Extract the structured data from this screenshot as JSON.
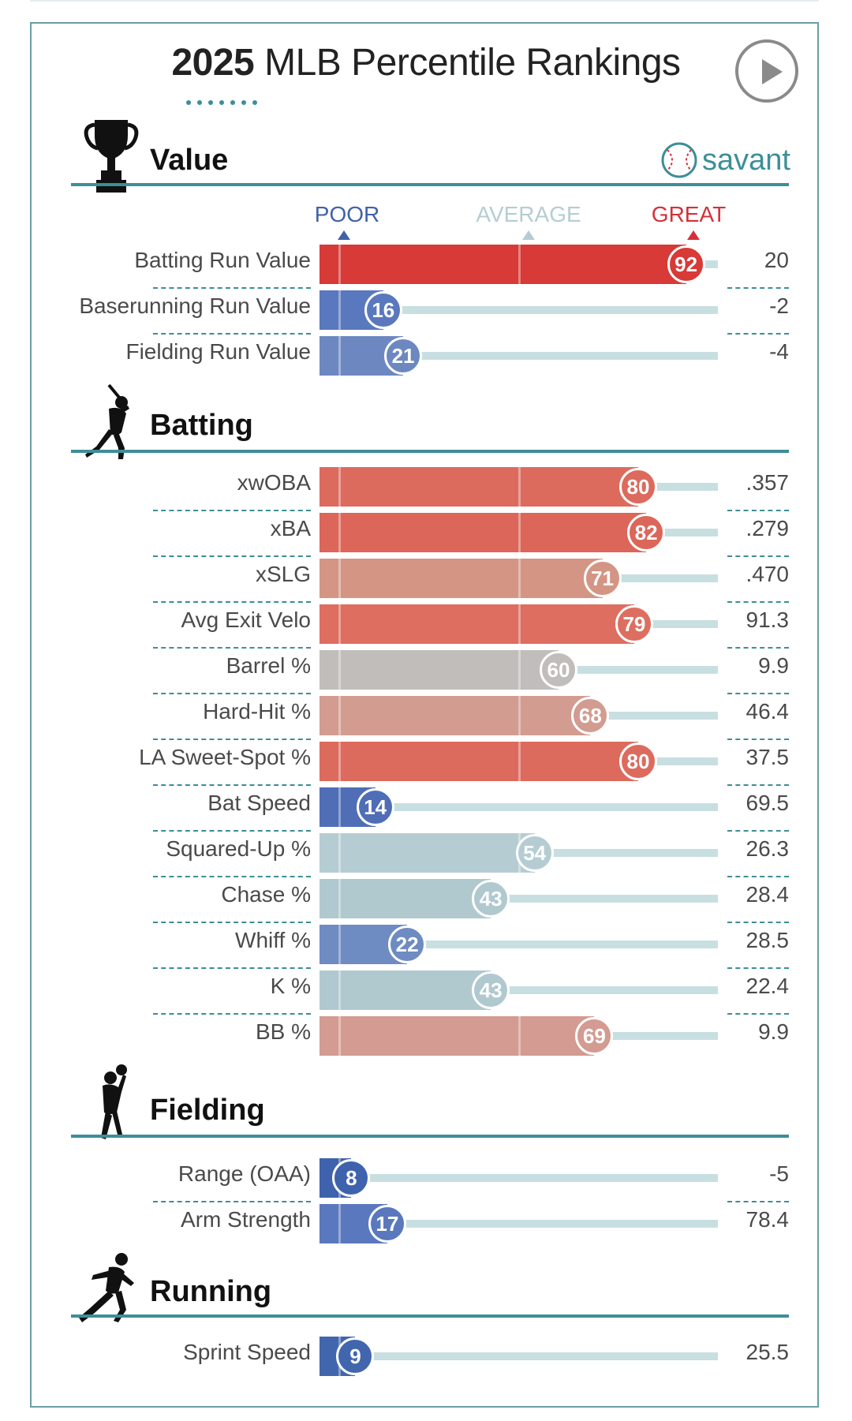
{
  "header": {
    "title_year": "2025",
    "title_rest": " MLB Percentile Rankings",
    "play_icon": "play-icon",
    "logo_text": "savant"
  },
  "scale": {
    "poor": "POOR",
    "average": "AVERAGE",
    "great": "GREAT",
    "colors": {
      "poor": "#3f62a8",
      "average": "#b5cdd2",
      "great": "#d3313a"
    }
  },
  "chart_data": {
    "type": "bar",
    "orientation": "horizontal",
    "xlim": [
      0,
      100
    ],
    "sections": [
      {
        "name": "Value",
        "icon": "trophy-icon",
        "rows": [
          {
            "label": "Batting Run Value",
            "percentile": 92,
            "value": "20",
            "color": "#d73a37"
          },
          {
            "label": "Baserunning Run Value",
            "percentile": 16,
            "value": "-2",
            "color": "#5a78bd"
          },
          {
            "label": "Fielding Run Value",
            "percentile": 21,
            "value": "-4",
            "color": "#6d88c1"
          }
        ]
      },
      {
        "name": "Batting",
        "icon": "batter-icon",
        "rows": [
          {
            "label": "xwOBA",
            "percentile": 80,
            "value": ".357",
            "color": "#dc6b5d"
          },
          {
            "label": "xBA",
            "percentile": 82,
            "value": ".279",
            "color": "#db6659"
          },
          {
            "label": "xSLG",
            "percentile": 71,
            "value": ".470",
            "color": "#d49585"
          },
          {
            "label": "Avg Exit Velo",
            "percentile": 79,
            "value": "91.3",
            "color": "#dd6e60"
          },
          {
            "label": "Barrel %",
            "percentile": 60,
            "value": "9.9",
            "color": "#c0bdba"
          },
          {
            "label": "Hard-Hit %",
            "percentile": 68,
            "value": "46.4",
            "color": "#d29c91"
          },
          {
            "label": "LA Sweet-Spot %",
            "percentile": 80,
            "value": "37.5",
            "color": "#dc6b5d"
          },
          {
            "label": "Bat Speed",
            "percentile": 14,
            "value": "69.5",
            "color": "#4f6eb6"
          },
          {
            "label": "Squared-Up %",
            "percentile": 54,
            "value": "26.3",
            "color": "#b5cdd2"
          },
          {
            "label": "Chase %",
            "percentile": 43,
            "value": "28.4",
            "color": "#b0c9cf"
          },
          {
            "label": "Whiff %",
            "percentile": 22,
            "value": "28.5",
            "color": "#6e8bc2"
          },
          {
            "label": "K %",
            "percentile": 43,
            "value": "22.4",
            "color": "#b0c9cf"
          },
          {
            "label": "BB %",
            "percentile": 69,
            "value": "9.9",
            "color": "#d39b91"
          }
        ]
      },
      {
        "name": "Fielding",
        "icon": "fielder-icon",
        "rows": [
          {
            "label": "Range (OAA)",
            "percentile": 8,
            "value": "-5",
            "color": "#3f62ad"
          },
          {
            "label": "Arm Strength",
            "percentile": 17,
            "value": "78.4",
            "color": "#5a78bd"
          }
        ]
      },
      {
        "name": "Running",
        "icon": "runner-icon",
        "rows": [
          {
            "label": "Sprint Speed",
            "percentile": 9,
            "value": "25.5",
            "color": "#4266ae"
          }
        ]
      }
    ]
  }
}
